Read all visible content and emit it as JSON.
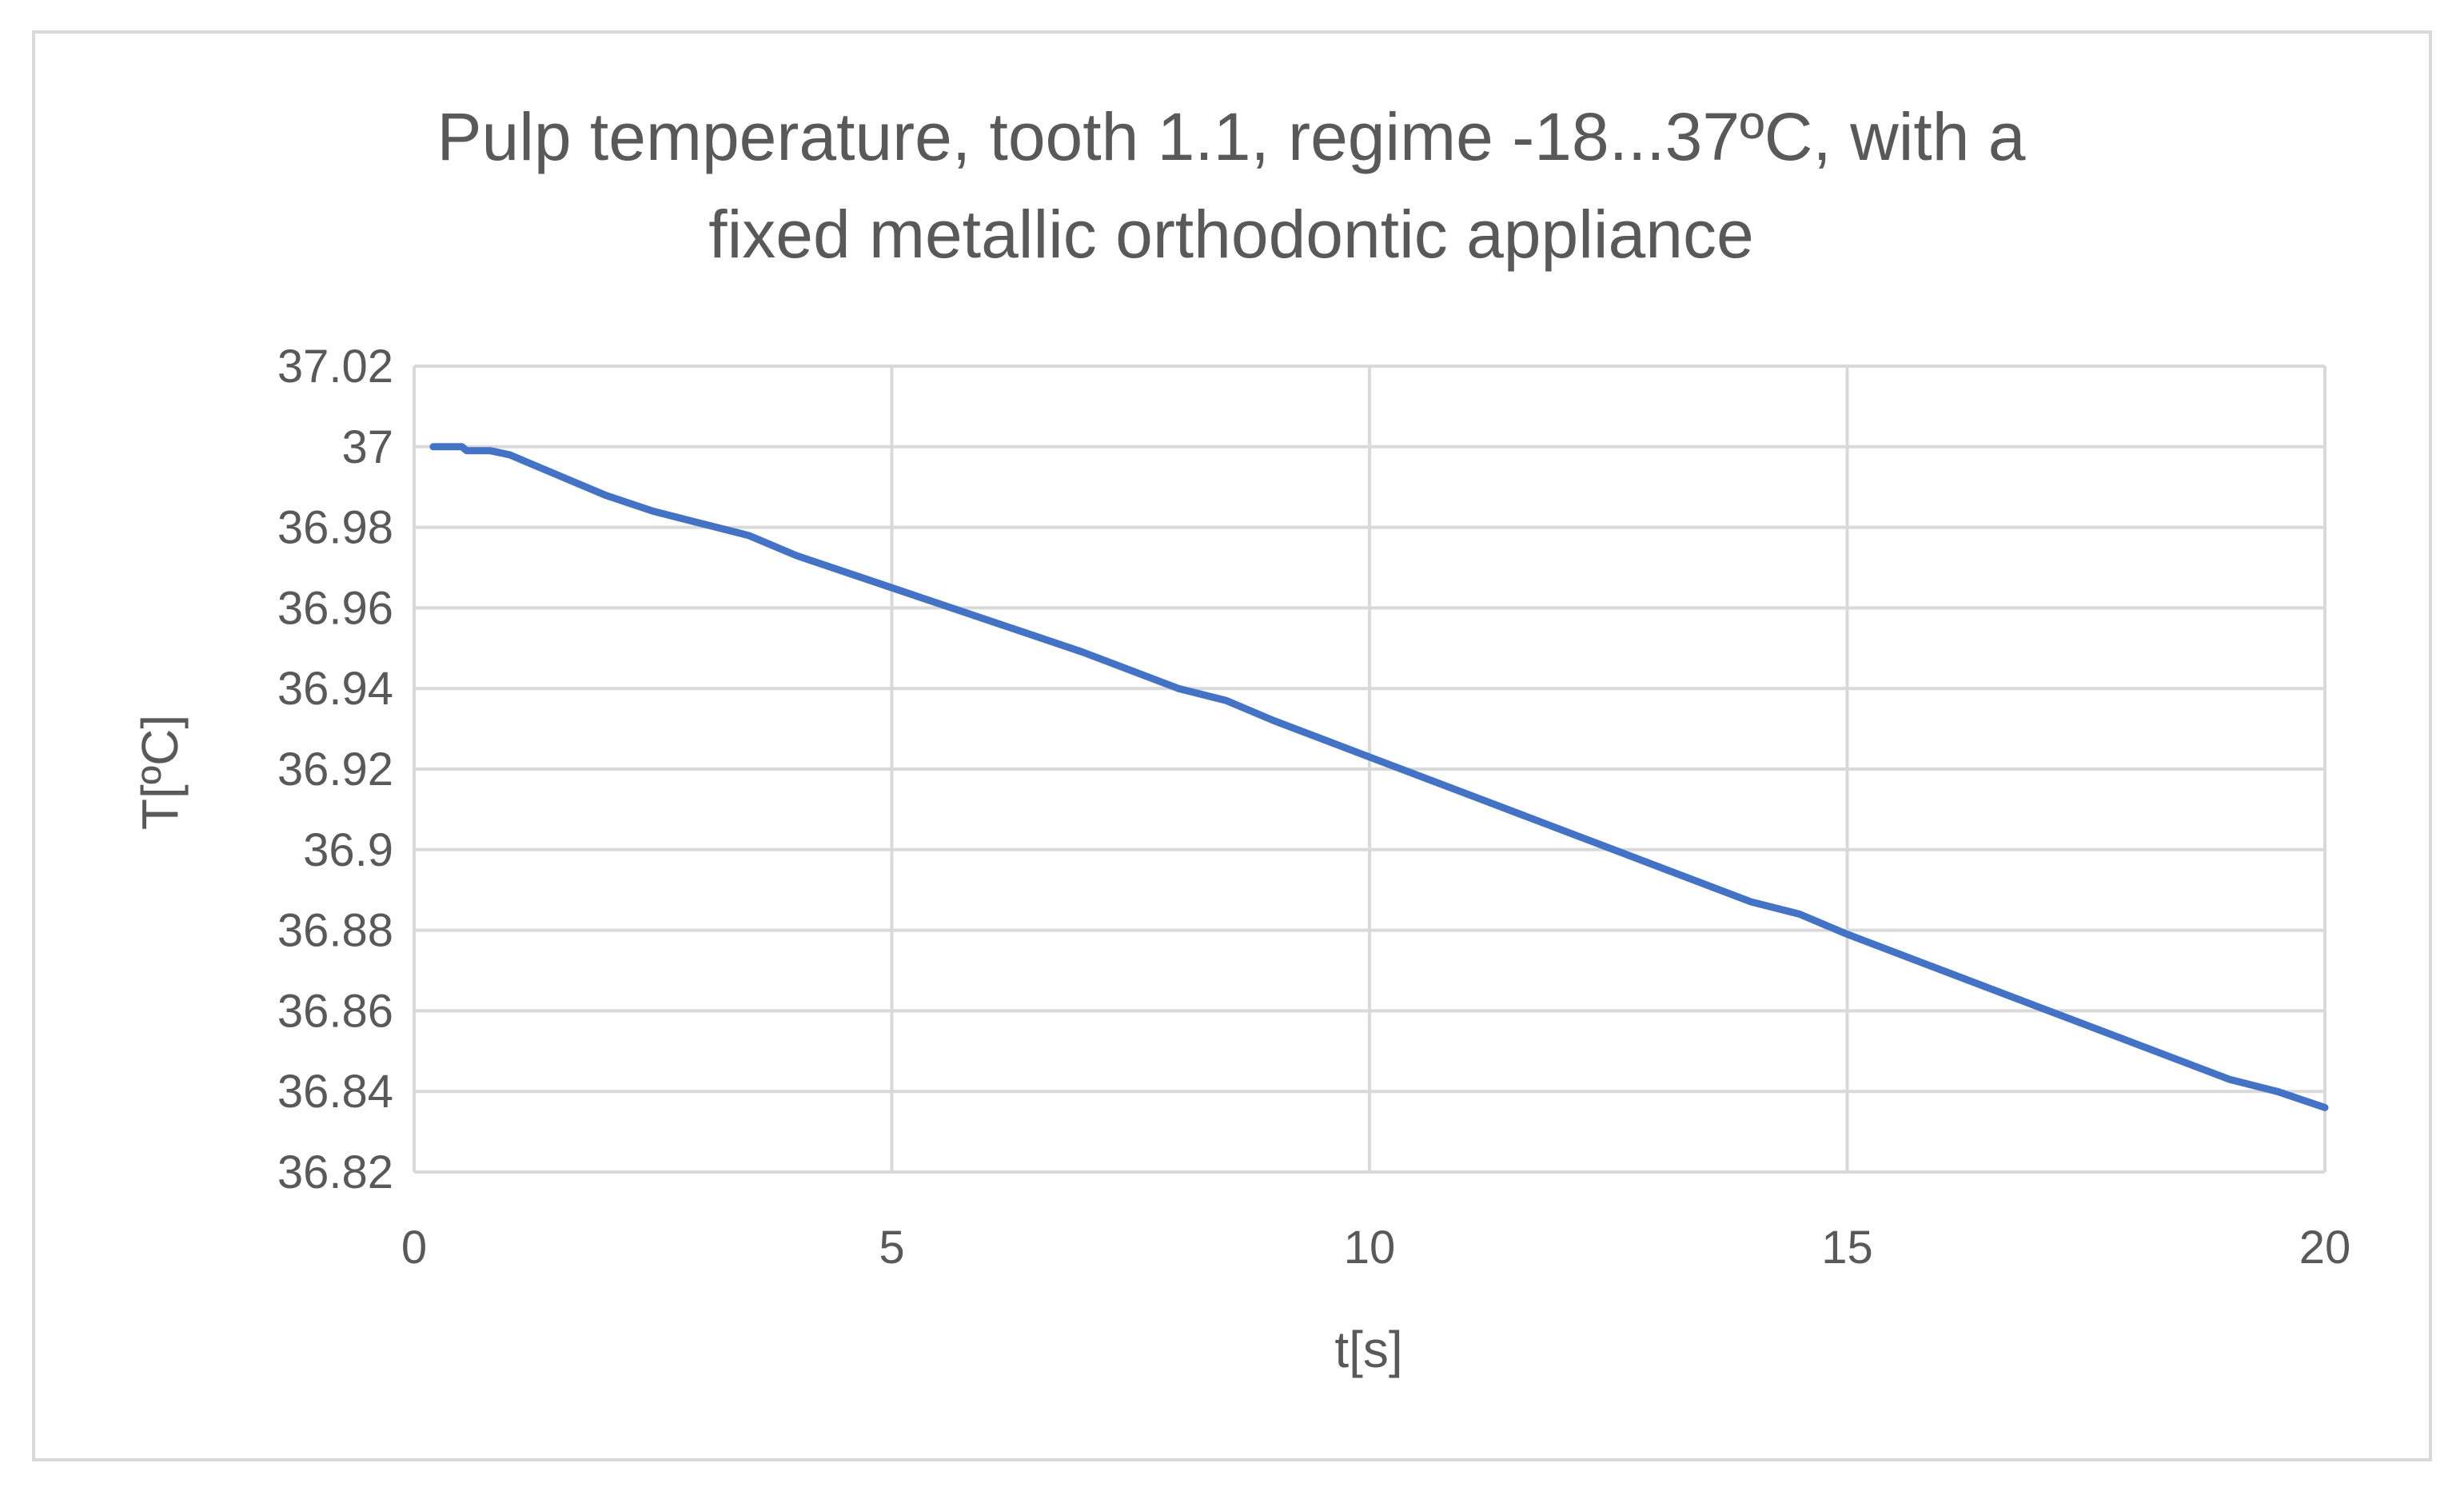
{
  "chart_data": {
    "type": "line",
    "title": "Pulp temperature, tooth 1.1, regime -18...37ºC, with a fixed metallic orthodontic appliance",
    "title_lines": [
      "Pulp temperature, tooth 1.1, regime -18...37ºC, with a",
      "fixed metallic orthodontic appliance"
    ],
    "xlabel": "t[s]",
    "ylabel": "T[ºC]",
    "xlim": [
      0,
      20
    ],
    "ylim": [
      36.82,
      37.02
    ],
    "xticks": [
      0,
      5,
      10,
      15,
      20
    ],
    "yticks": [
      37.02,
      37,
      36.98,
      36.96,
      36.94,
      36.92,
      36.9,
      36.88,
      36.86,
      36.84,
      36.82
    ],
    "ytick_labels": [
      "37.02",
      "37",
      "36.98",
      "36.96",
      "36.94",
      "36.92",
      "36.9",
      "36.88",
      "36.86",
      "36.84",
      "36.82"
    ],
    "xtick_labels": [
      "0",
      "5",
      "10",
      "15",
      "20"
    ],
    "grid": true,
    "legend": "none",
    "series": [
      {
        "color": "#4472C4",
        "x": [
          0.2,
          0.3,
          0.5,
          0.55,
          0.8,
          1.0,
          1.2,
          1.5,
          2.0,
          2.5,
          3.0,
          3.5,
          4.0,
          5.0,
          6.0,
          7.0,
          8.0,
          8.5,
          9.0,
          10.0,
          11.0,
          12.0,
          13.0,
          14.0,
          14.5,
          15.0,
          16.0,
          17.0,
          18.0,
          19.0,
          19.5,
          20.0
        ],
        "y": [
          37.0,
          37.0,
          37.0,
          36.999,
          36.999,
          36.998,
          36.996,
          36.993,
          36.988,
          36.984,
          36.981,
          36.978,
          36.973,
          36.965,
          36.957,
          36.949,
          36.94,
          36.937,
          36.932,
          36.923,
          36.914,
          36.905,
          36.896,
          36.887,
          36.884,
          36.879,
          36.87,
          36.861,
          36.852,
          36.843,
          36.84,
          36.836
        ]
      }
    ]
  },
  "colors": {
    "gridline": "#d9d9d9",
    "axis_text": "#595959",
    "series": "#4472C4",
    "frame": "#d9d9d9"
  }
}
